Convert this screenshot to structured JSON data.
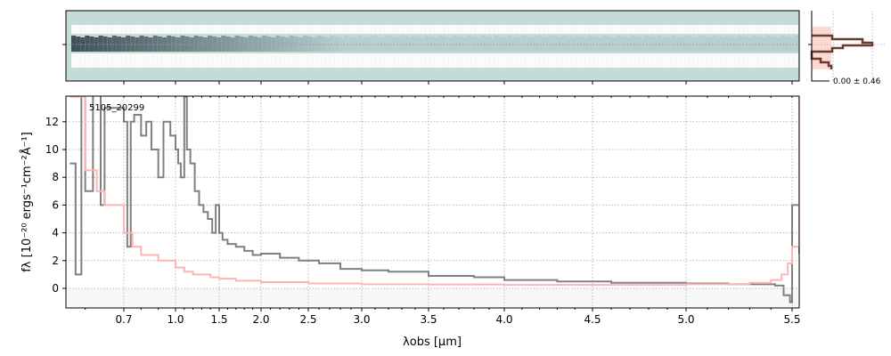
{
  "chart_data": [
    {
      "type": "heatmap",
      "description_label": "",
      "colormap": [
        "#1a1a2e",
        "#4a6a7a",
        "#c5dbd9",
        "#ffffff"
      ]
    },
    {
      "type": "line",
      "title": "",
      "label": "5105_20299",
      "xlabel": "λobs [μm]",
      "ylabel": "fλ [10⁻²⁰ ergs⁻¹cm⁻²Å⁻¹]",
      "xticks": [
        0.7,
        1.0,
        1.5,
        2.0,
        2.5,
        3.0,
        3.5,
        4.0,
        4.5,
        5.0,
        5.5
      ],
      "xtick_labels": [
        "0.7",
        "1.0",
        "1.5",
        "2.0",
        "2.5",
        "3.0",
        "3.5",
        "4.0",
        "4.5",
        "5.0",
        "5.5"
      ],
      "yticks": [
        0,
        2,
        4,
        6,
        8,
        10,
        12
      ],
      "ylim": [
        -1.4,
        13.85
      ],
      "xlim": [
        0.55,
        5.52
      ],
      "grid": true,
      "series": [
        {
          "role": "data",
          "color": "#808080",
          "x": [
            0.56,
            0.575,
            0.59,
            0.6,
            0.62,
            0.64,
            0.65,
            0.68,
            0.7,
            0.72,
            0.74,
            0.76,
            0.8,
            0.83,
            0.86,
            0.9,
            0.93,
            0.97,
            1.0,
            1.03,
            1.06,
            1.1,
            1.13,
            1.17,
            1.22,
            1.27,
            1.32,
            1.37,
            1.42,
            1.46,
            1.5,
            1.54,
            1.6,
            1.7,
            1.8,
            1.9,
            2.0,
            2.2,
            2.4,
            2.6,
            2.8,
            3.0,
            3.2,
            3.5,
            3.8,
            4.0,
            4.3,
            4.6,
            5.0,
            5.2,
            5.35,
            5.42,
            5.46,
            5.49,
            5.5,
            5.52
          ],
          "y": [
            9,
            1,
            14,
            7,
            14,
            6,
            13,
            13,
            12,
            3,
            12,
            12.5,
            11,
            12,
            10,
            8,
            12,
            11,
            10,
            9,
            8,
            13.8,
            10,
            9,
            7,
            6,
            5.5,
            5,
            4,
            6,
            4,
            3.5,
            3.2,
            3,
            2.7,
            2.4,
            2.5,
            2.2,
            2,
            1.8,
            1.4,
            1.3,
            1.2,
            0.9,
            0.8,
            0.6,
            0.5,
            0.4,
            0.35,
            0.3,
            0.3,
            0.2,
            -0.5,
            -1,
            6,
            2.5
          ]
        },
        {
          "role": "model",
          "color": "#ffb3b3",
          "x": [
            0.56,
            0.6,
            0.63,
            0.65,
            0.7,
            0.75,
            0.8,
            0.9,
            1.0,
            1.1,
            1.2,
            1.4,
            1.5,
            1.7,
            2.0,
            2.5,
            3.0,
            3.5,
            4.0,
            4.5,
            5.0,
            5.3,
            5.4,
            5.45,
            5.48,
            5.5,
            5.52
          ],
          "y": [
            13.8,
            8.5,
            7,
            6,
            4,
            3,
            2.4,
            2,
            1.5,
            1.2,
            1,
            0.8,
            0.7,
            0.55,
            0.45,
            0.35,
            0.3,
            0.28,
            0.25,
            0.25,
            0.3,
            0.4,
            0.6,
            1,
            1.8,
            3,
            14
          ]
        }
      ]
    },
    {
      "type": "bar",
      "orientation": "horizontal",
      "label": "0.00 ± 0.46",
      "color": "#6b3a2a",
      "fill": "#fbd0c8"
    }
  ]
}
